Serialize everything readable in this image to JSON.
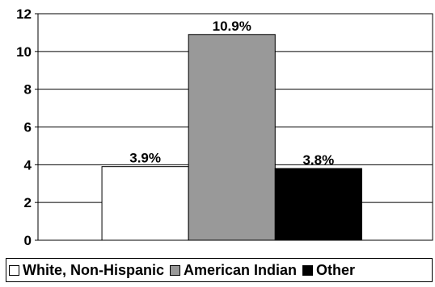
{
  "chart_data": {
    "type": "bar",
    "categories": [
      "White, Non-Hispanic",
      "American Indian",
      "Other"
    ],
    "values": [
      3.9,
      10.9,
      3.8
    ],
    "data_labels": [
      "3.9%",
      "10.9%",
      "3.8%"
    ],
    "colors": [
      "#ffffff",
      "#999999",
      "#000000"
    ],
    "ylim": [
      0,
      12
    ],
    "yticks": [
      0,
      2,
      4,
      6,
      8,
      10,
      12
    ],
    "ytick_labels": [
      "0",
      "2",
      "4",
      "6",
      "8",
      "10",
      "12"
    ],
    "grid": true,
    "legend_position": "bottom",
    "legend": [
      {
        "label": "White, Non-Hispanic",
        "color": "#ffffff"
      },
      {
        "label": "American Indian",
        "color": "#999999"
      },
      {
        "label": "Other",
        "color": "#000000"
      }
    ]
  }
}
